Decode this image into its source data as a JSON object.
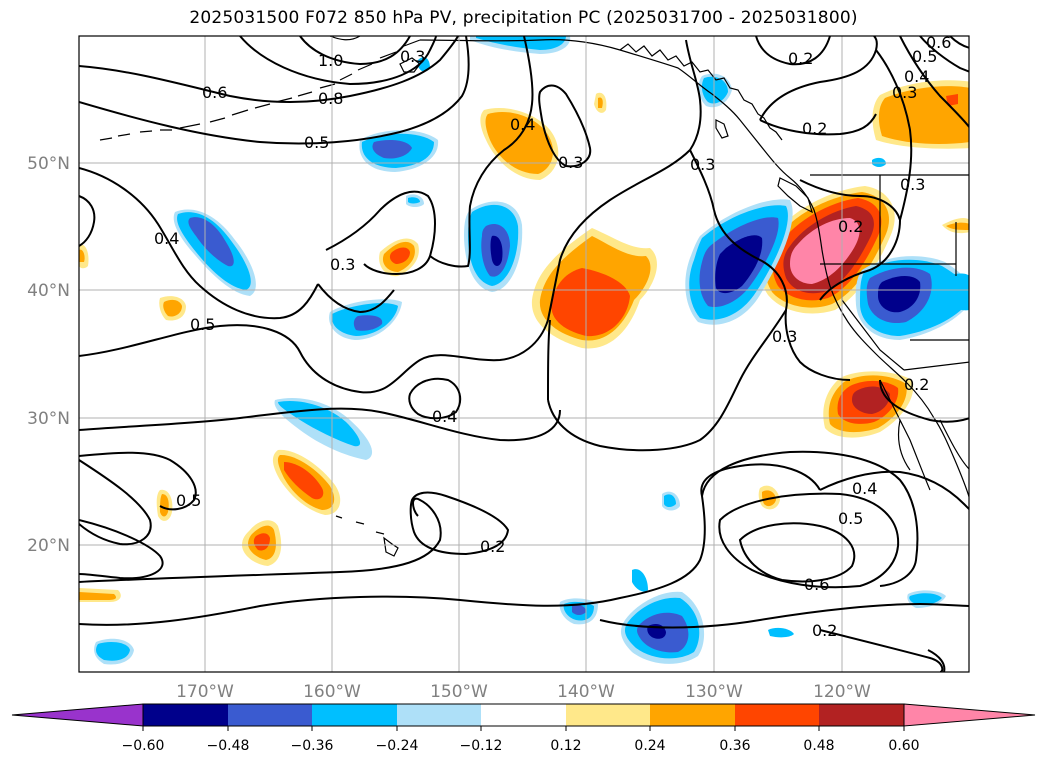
{
  "title": "2025031500 F072 850 hPa PV, precipitation PC (2025031700 - 2025031800)",
  "lat_labels": [
    "50°N",
    "40°N",
    "30°N",
    "20°N"
  ],
  "lon_labels": [
    "170°W",
    "160°W",
    "150°W",
    "140°W",
    "130°W",
    "120°W"
  ],
  "colorbar": {
    "ticks": [
      "−0.60",
      "−0.48",
      "−0.36",
      "−0.24",
      "−0.12",
      "0.12",
      "0.24",
      "0.36",
      "0.48",
      "0.60"
    ],
    "colors": [
      "#9933cc",
      "#00008b",
      "#3a5bd0",
      "#00bfff",
      "#aee0f8",
      "#ffffff",
      "#ffe88a",
      "#ffa500",
      "#ff4500",
      "#b22222",
      "#ff85a8"
    ]
  },
  "contour_labels": [
    "1.0",
    "0.8",
    "0.6",
    "0.5",
    "0.4",
    "0.3",
    "0.4",
    "0.5",
    "0.3",
    "0.4",
    "0.2",
    "0.4",
    "0.5",
    "0.6",
    "0.2",
    "0.2",
    "0.2",
    "0.3",
    "0.3",
    "0.2",
    "0.3",
    "0.6",
    "0.5",
    "0.4",
    "0.3",
    "0.2",
    "0.5",
    "0.3"
  ],
  "colors": {
    "grid": "#b0b0b0",
    "axis_label": "#808080",
    "contour": "#000000"
  }
}
